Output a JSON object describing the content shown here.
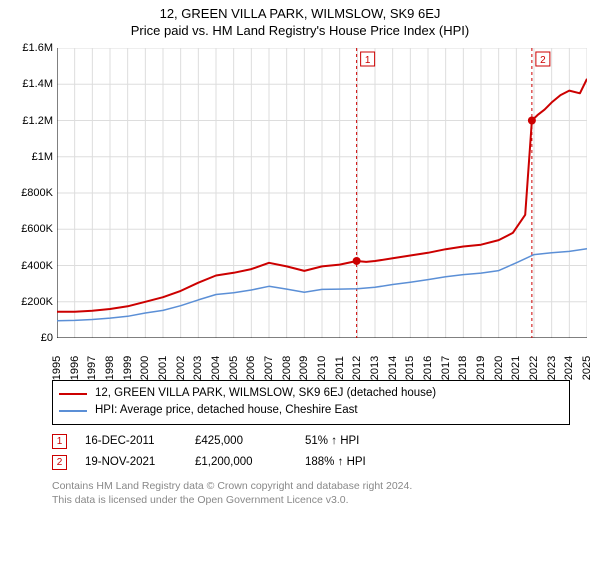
{
  "title_line1": "12, GREEN VILLA PARK, WILMSLOW, SK9 6EJ",
  "title_line2": "Price paid vs. HM Land Registry's House Price Index (HPI)",
  "chart": {
    "type": "line",
    "background_color": "#ffffff",
    "grid_color": "#dddddd",
    "axis_color": "#000000",
    "label_fontsize": 11,
    "x_axis": {
      "min": 1995,
      "max": 2025,
      "ticks": [
        1995,
        1996,
        1997,
        1998,
        1999,
        2000,
        2001,
        2002,
        2003,
        2004,
        2005,
        2006,
        2007,
        2008,
        2009,
        2010,
        2011,
        2012,
        2013,
        2014,
        2015,
        2016,
        2017,
        2018,
        2019,
        2020,
        2021,
        2022,
        2023,
        2024,
        2025
      ]
    },
    "y_axis": {
      "min": 0,
      "max": 1600000,
      "ticks": [
        {
          "v": 0,
          "label": "£0"
        },
        {
          "v": 200000,
          "label": "£200K"
        },
        {
          "v": 400000,
          "label": "£400K"
        },
        {
          "v": 600000,
          "label": "£600K"
        },
        {
          "v": 800000,
          "label": "£800K"
        },
        {
          "v": 1000000,
          "label": "£1M"
        },
        {
          "v": 1200000,
          "label": "£1.2M"
        },
        {
          "v": 1400000,
          "label": "£1.4M"
        },
        {
          "v": 1600000,
          "label": "£1.6M"
        }
      ]
    },
    "series": [
      {
        "id": "property",
        "label": "12, GREEN VILLA PARK, WILMSLOW, SK9 6EJ (detached house)",
        "color": "#cc0000",
        "line_width": 2,
        "points": [
          [
            1995,
            145000
          ],
          [
            1996,
            145000
          ],
          [
            1997,
            150000
          ],
          [
            1998,
            160000
          ],
          [
            1999,
            175000
          ],
          [
            2000,
            200000
          ],
          [
            2001,
            225000
          ],
          [
            2002,
            260000
          ],
          [
            2003,
            305000
          ],
          [
            2004,
            345000
          ],
          [
            2005,
            360000
          ],
          [
            2006,
            380000
          ],
          [
            2007,
            415000
          ],
          [
            2008,
            395000
          ],
          [
            2009,
            370000
          ],
          [
            2010,
            395000
          ],
          [
            2011,
            405000
          ],
          [
            2011.96,
            425000
          ],
          [
            2012.5,
            420000
          ],
          [
            2013,
            425000
          ],
          [
            2014,
            440000
          ],
          [
            2015,
            455000
          ],
          [
            2016,
            470000
          ],
          [
            2017,
            490000
          ],
          [
            2018,
            505000
          ],
          [
            2019,
            515000
          ],
          [
            2020,
            540000
          ],
          [
            2020.8,
            580000
          ],
          [
            2021.5,
            680000
          ],
          [
            2021.88,
            1200000
          ],
          [
            2022.2,
            1230000
          ],
          [
            2022.6,
            1260000
          ],
          [
            2023,
            1300000
          ],
          [
            2023.5,
            1340000
          ],
          [
            2024,
            1365000
          ],
          [
            2024.6,
            1350000
          ],
          [
            2025,
            1430000
          ]
        ]
      },
      {
        "id": "hpi",
        "label": "HPI: Average price, detached house, Cheshire East",
        "color": "#5b8fd6",
        "line_width": 1.5,
        "points": [
          [
            1995,
            95000
          ],
          [
            1996,
            97000
          ],
          [
            1997,
            102000
          ],
          [
            1998,
            110000
          ],
          [
            1999,
            120000
          ],
          [
            2000,
            138000
          ],
          [
            2001,
            152000
          ],
          [
            2002,
            178000
          ],
          [
            2003,
            210000
          ],
          [
            2004,
            240000
          ],
          [
            2005,
            250000
          ],
          [
            2006,
            265000
          ],
          [
            2007,
            285000
          ],
          [
            2008,
            270000
          ],
          [
            2009,
            252000
          ],
          [
            2010,
            268000
          ],
          [
            2011,
            270000
          ],
          [
            2012,
            272000
          ],
          [
            2013,
            280000
          ],
          [
            2014,
            295000
          ],
          [
            2015,
            308000
          ],
          [
            2016,
            322000
          ],
          [
            2017,
            338000
          ],
          [
            2018,
            350000
          ],
          [
            2019,
            358000
          ],
          [
            2020,
            372000
          ],
          [
            2021,
            415000
          ],
          [
            2022,
            460000
          ],
          [
            2023,
            470000
          ],
          [
            2024,
            478000
          ],
          [
            2025,
            492000
          ]
        ]
      }
    ],
    "markers": [
      {
        "n": "1",
        "x": 2011.96,
        "y": 425000,
        "vline_color": "#cc0000",
        "dot_color": "#cc0000"
      },
      {
        "n": "2",
        "x": 2021.88,
        "y": 1200000,
        "vline_color": "#cc0000",
        "dot_color": "#cc0000"
      }
    ]
  },
  "legend": {
    "items": [
      {
        "color": "#cc0000",
        "text": "12, GREEN VILLA PARK, WILMSLOW, SK9 6EJ (detached house)"
      },
      {
        "color": "#5b8fd6",
        "text": "HPI: Average price, detached house, Cheshire East"
      }
    ]
  },
  "data_points": [
    {
      "n": "1",
      "date": "16-DEC-2011",
      "price": "£425,000",
      "hpi_pct": "51%",
      "hpi_dir": "up",
      "hpi_label": "HPI"
    },
    {
      "n": "2",
      "date": "19-NOV-2021",
      "price": "£1,200,000",
      "hpi_pct": "188%",
      "hpi_dir": "up",
      "hpi_label": "HPI"
    }
  ],
  "footer_line1": "Contains HM Land Registry data © Crown copyright and database right 2024.",
  "footer_line2": "This data is licensed under the Open Government Licence v3.0."
}
